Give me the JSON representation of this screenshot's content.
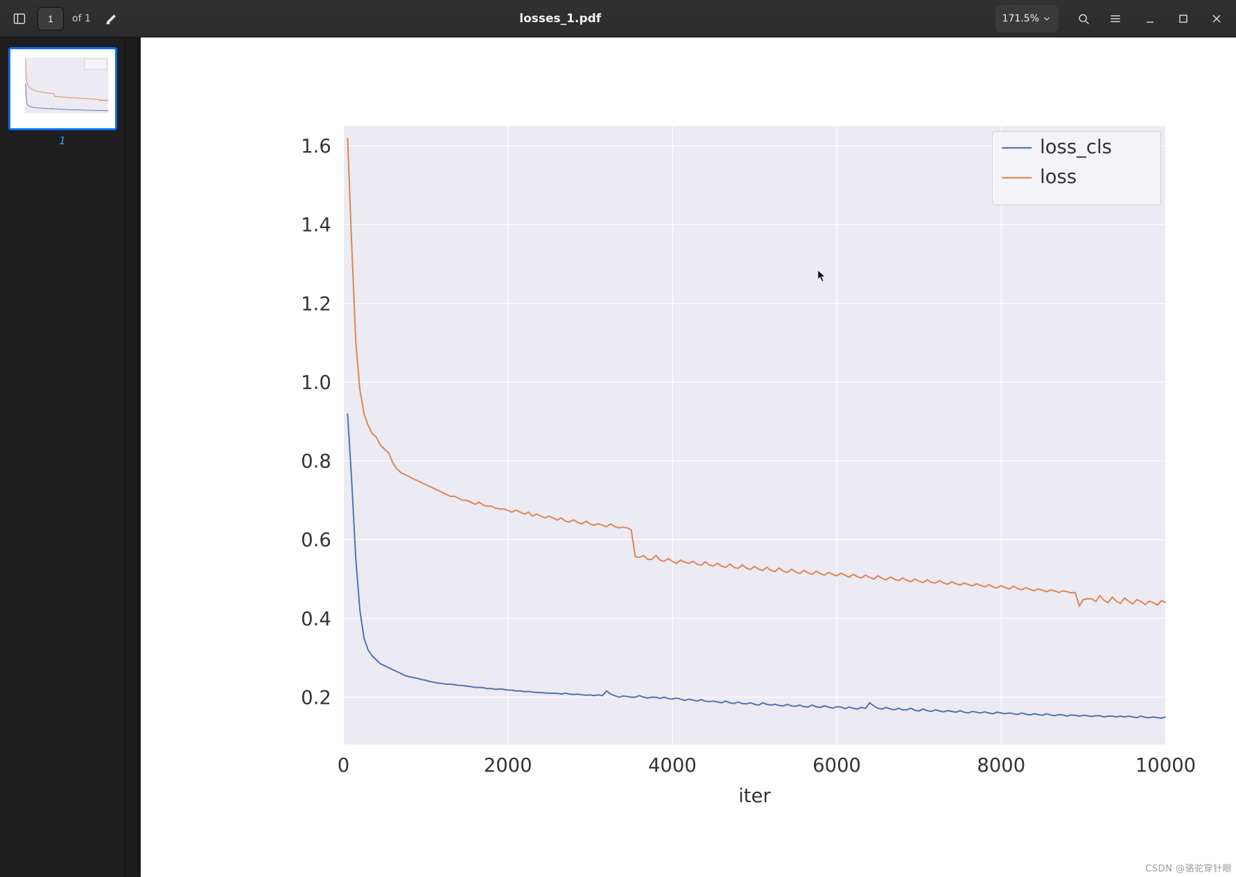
{
  "toolbar": {
    "current_page": "1",
    "page_of_prefix": "of",
    "page_count": "1",
    "document_title": "losses_1.pdf",
    "zoom_value": "171.5%"
  },
  "sidebar": {
    "thumbnails": [
      {
        "page_number": "1"
      }
    ]
  },
  "watermark": "CSDN @骆驼穿针眼",
  "chart": {
    "type": "line",
    "background_color": "#ffffff",
    "plot_bgcolor": "#eceaf2",
    "grid_color": "#ffffff",
    "xlabel": "iter",
    "label_fontsize": 28,
    "tick_fontsize": 28,
    "xlim": [
      0,
      10000
    ],
    "ylim": [
      0.08,
      1.65
    ],
    "xticks": [
      0,
      2000,
      4000,
      6000,
      8000,
      10000
    ],
    "xtick_labels": [
      "0",
      "2000",
      "4000",
      "6000",
      "8000",
      "10000"
    ],
    "yticks": [
      0.2,
      0.4,
      0.6,
      0.8,
      1.0,
      1.2,
      1.4,
      1.6
    ],
    "ytick_labels": [
      "0.2",
      "0.4",
      "0.6",
      "0.8",
      "1.0",
      "1.2",
      "1.4",
      "1.6"
    ],
    "legend": {
      "position": "upper right",
      "bgcolor": "#f4f3f7",
      "bordercolor": "#d1d0d6",
      "fontsize": 28,
      "items": [
        {
          "label": "loss_cls",
          "color": "#4c72b0"
        },
        {
          "label": "loss",
          "color": "#dd8452"
        }
      ]
    },
    "line_width": 2.0,
    "series": [
      {
        "name": "loss_cls",
        "color": "#4c72b0",
        "x_step": 50,
        "x_start": 50,
        "y": [
          0.92,
          0.75,
          0.55,
          0.42,
          0.35,
          0.32,
          0.305,
          0.295,
          0.285,
          0.28,
          0.275,
          0.27,
          0.265,
          0.26,
          0.255,
          0.252,
          0.25,
          0.248,
          0.245,
          0.243,
          0.24,
          0.238,
          0.236,
          0.235,
          0.233,
          0.233,
          0.232,
          0.23,
          0.23,
          0.228,
          0.227,
          0.225,
          0.225,
          0.224,
          0.222,
          0.222,
          0.22,
          0.221,
          0.22,
          0.218,
          0.218,
          0.216,
          0.216,
          0.214,
          0.215,
          0.213,
          0.212,
          0.212,
          0.211,
          0.21,
          0.21,
          0.21,
          0.208,
          0.21,
          0.208,
          0.207,
          0.208,
          0.206,
          0.205,
          0.206,
          0.204,
          0.206,
          0.204,
          0.216,
          0.208,
          0.204,
          0.2,
          0.203,
          0.202,
          0.2,
          0.2,
          0.204,
          0.2,
          0.198,
          0.2,
          0.2,
          0.197,
          0.2,
          0.197,
          0.195,
          0.198,
          0.195,
          0.192,
          0.195,
          0.193,
          0.19,
          0.194,
          0.19,
          0.189,
          0.19,
          0.188,
          0.186,
          0.19,
          0.186,
          0.184,
          0.188,
          0.184,
          0.183,
          0.186,
          0.182,
          0.18,
          0.186,
          0.182,
          0.18,
          0.182,
          0.179,
          0.178,
          0.182,
          0.178,
          0.177,
          0.18,
          0.176,
          0.175,
          0.18,
          0.176,
          0.174,
          0.178,
          0.175,
          0.172,
          0.176,
          0.175,
          0.171,
          0.175,
          0.172,
          0.17,
          0.174,
          0.172,
          0.186,
          0.178,
          0.172,
          0.17,
          0.174,
          0.17,
          0.168,
          0.172,
          0.168,
          0.168,
          0.172,
          0.167,
          0.165,
          0.17,
          0.166,
          0.164,
          0.168,
          0.165,
          0.163,
          0.166,
          0.164,
          0.162,
          0.166,
          0.162,
          0.16,
          0.164,
          0.162,
          0.16,
          0.163,
          0.16,
          0.158,
          0.162,
          0.16,
          0.158,
          0.16,
          0.158,
          0.156,
          0.16,
          0.157,
          0.155,
          0.158,
          0.156,
          0.154,
          0.158,
          0.155,
          0.153,
          0.156,
          0.155,
          0.152,
          0.155,
          0.154,
          0.152,
          0.154,
          0.153,
          0.151,
          0.153,
          0.153,
          0.15,
          0.152,
          0.152,
          0.15,
          0.152,
          0.15,
          0.152,
          0.15,
          0.148,
          0.152,
          0.149,
          0.148,
          0.15,
          0.148,
          0.147,
          0.15
        ]
      },
      {
        "name": "loss",
        "color": "#dd8452",
        "x_step": 50,
        "x_start": 50,
        "y": [
          1.62,
          1.35,
          1.1,
          0.98,
          0.92,
          0.89,
          0.87,
          0.86,
          0.84,
          0.83,
          0.82,
          0.795,
          0.78,
          0.77,
          0.765,
          0.76,
          0.754,
          0.75,
          0.745,
          0.74,
          0.735,
          0.73,
          0.725,
          0.72,
          0.715,
          0.71,
          0.71,
          0.705,
          0.7,
          0.7,
          0.695,
          0.69,
          0.695,
          0.688,
          0.685,
          0.685,
          0.68,
          0.678,
          0.678,
          0.674,
          0.67,
          0.675,
          0.67,
          0.665,
          0.67,
          0.66,
          0.665,
          0.66,
          0.655,
          0.66,
          0.655,
          0.65,
          0.655,
          0.647,
          0.645,
          0.65,
          0.644,
          0.64,
          0.647,
          0.64,
          0.637,
          0.64,
          0.637,
          0.633,
          0.64,
          0.633,
          0.63,
          0.632,
          0.63,
          0.625,
          0.557,
          0.555,
          0.56,
          0.55,
          0.55,
          0.56,
          0.548,
          0.545,
          0.552,
          0.545,
          0.54,
          0.548,
          0.543,
          0.54,
          0.545,
          0.538,
          0.535,
          0.544,
          0.536,
          0.533,
          0.54,
          0.533,
          0.53,
          0.538,
          0.53,
          0.527,
          0.536,
          0.528,
          0.524,
          0.532,
          0.525,
          0.522,
          0.53,
          0.522,
          0.519,
          0.528,
          0.52,
          0.517,
          0.525,
          0.518,
          0.514,
          0.522,
          0.516,
          0.512,
          0.52,
          0.514,
          0.51,
          0.517,
          0.512,
          0.508,
          0.515,
          0.51,
          0.505,
          0.512,
          0.506,
          0.503,
          0.51,
          0.504,
          0.5,
          0.508,
          0.502,
          0.498,
          0.505,
          0.5,
          0.496,
          0.503,
          0.497,
          0.493,
          0.5,
          0.495,
          0.491,
          0.498,
          0.492,
          0.49,
          0.496,
          0.49,
          0.487,
          0.493,
          0.488,
          0.485,
          0.49,
          0.486,
          0.483,
          0.488,
          0.484,
          0.48,
          0.486,
          0.48,
          0.478,
          0.483,
          0.478,
          0.475,
          0.482,
          0.476,
          0.473,
          0.478,
          0.474,
          0.47,
          0.475,
          0.472,
          0.468,
          0.472,
          0.47,
          0.466,
          0.47,
          0.468,
          0.465,
          0.466,
          0.432,
          0.448,
          0.45,
          0.45,
          0.443,
          0.458,
          0.446,
          0.44,
          0.454,
          0.444,
          0.438,
          0.452,
          0.444,
          0.437,
          0.448,
          0.443,
          0.435,
          0.444,
          0.44,
          0.434,
          0.445,
          0.44
        ]
      }
    ]
  }
}
